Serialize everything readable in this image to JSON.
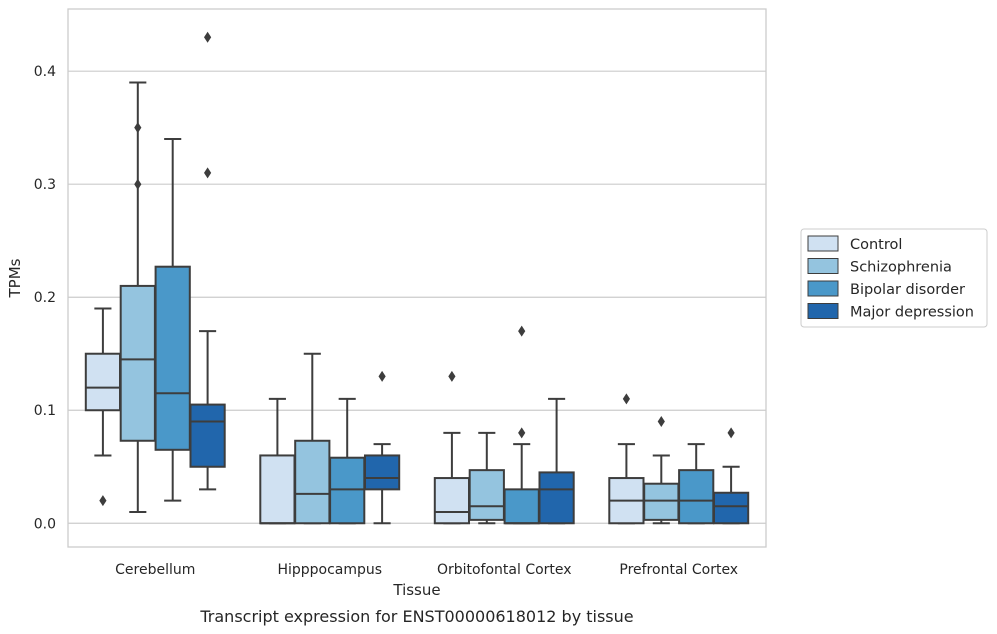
{
  "chart_data": {
    "type": "box",
    "caption": "Transcript expression for ENST00000618012 by tissue",
    "xlabel": "Tissue",
    "ylabel": "TPMs",
    "ylim": [
      -0.021,
      0.455
    ],
    "yticks": [
      0.0,
      0.1,
      0.2,
      0.3,
      0.4
    ],
    "ytick_labels": [
      "0.0",
      "0.1",
      "0.2",
      "0.3",
      "0.4"
    ],
    "grid": "horizontal",
    "legend_position": "right",
    "categories": [
      "Cerebellum",
      "Hipppocampus",
      "Orbitofontal Cortex",
      "Prefrontal Cortex"
    ],
    "series": [
      {
        "name": "Control",
        "color": "#d0e1f2",
        "boxes": [
          {
            "whisker_low": 0.06,
            "q1": 0.1,
            "median": 0.12,
            "q3": 0.15,
            "whisker_high": 0.19,
            "outliers": [
              0.02
            ]
          },
          {
            "whisker_low": 0.0,
            "q1": 0.0,
            "median": 0.0,
            "q3": 0.06,
            "whisker_high": 0.11,
            "outliers": []
          },
          {
            "whisker_low": 0.0,
            "q1": 0.0,
            "median": 0.01,
            "q3": 0.04,
            "whisker_high": 0.08,
            "outliers": [
              0.13
            ]
          },
          {
            "whisker_low": 0.0,
            "q1": 0.0,
            "median": 0.02,
            "q3": 0.04,
            "whisker_high": 0.07,
            "outliers": [
              0.11
            ]
          }
        ]
      },
      {
        "name": "Schizophrenia",
        "color": "#94c4df",
        "boxes": [
          {
            "whisker_low": 0.01,
            "q1": 0.073,
            "median": 0.145,
            "q3": 0.21,
            "whisker_high": 0.39,
            "outliers": [
              0.3,
              0.35
            ]
          },
          {
            "whisker_low": 0.0,
            "q1": 0.0,
            "median": 0.026,
            "q3": 0.073,
            "whisker_high": 0.15,
            "outliers": []
          },
          {
            "whisker_low": 0.0,
            "q1": 0.003,
            "median": 0.015,
            "q3": 0.047,
            "whisker_high": 0.08,
            "outliers": []
          },
          {
            "whisker_low": 0.0,
            "q1": 0.003,
            "median": 0.02,
            "q3": 0.035,
            "whisker_high": 0.06,
            "outliers": [
              0.09
            ]
          }
        ]
      },
      {
        "name": "Bipolar disorder",
        "color": "#4a98c9",
        "boxes": [
          {
            "whisker_low": 0.02,
            "q1": 0.065,
            "median": 0.115,
            "q3": 0.227,
            "whisker_high": 0.34,
            "outliers": []
          },
          {
            "whisker_low": 0.0,
            "q1": 0.0,
            "median": 0.03,
            "q3": 0.058,
            "whisker_high": 0.11,
            "outliers": []
          },
          {
            "whisker_low": 0.0,
            "q1": 0.0,
            "median": 0.0,
            "q3": 0.03,
            "whisker_high": 0.07,
            "outliers": [
              0.08,
              0.17
            ]
          },
          {
            "whisker_low": 0.0,
            "q1": 0.0,
            "median": 0.02,
            "q3": 0.047,
            "whisker_high": 0.07,
            "outliers": []
          }
        ]
      },
      {
        "name": "Major depression",
        "color": "#2166ac",
        "boxes": [
          {
            "whisker_low": 0.03,
            "q1": 0.05,
            "median": 0.09,
            "q3": 0.105,
            "whisker_high": 0.17,
            "outliers": [
              0.31,
              0.43
            ]
          },
          {
            "whisker_low": 0.0,
            "q1": 0.03,
            "median": 0.04,
            "q3": 0.06,
            "whisker_high": 0.07,
            "outliers": [
              0.13
            ]
          },
          {
            "whisker_low": 0.0,
            "q1": 0.0,
            "median": 0.03,
            "q3": 0.045,
            "whisker_high": 0.11,
            "outliers": []
          },
          {
            "whisker_low": 0.0,
            "q1": 0.0,
            "median": 0.015,
            "q3": 0.027,
            "whisker_high": 0.05,
            "outliers": [
              0.08
            ]
          }
        ]
      }
    ]
  }
}
